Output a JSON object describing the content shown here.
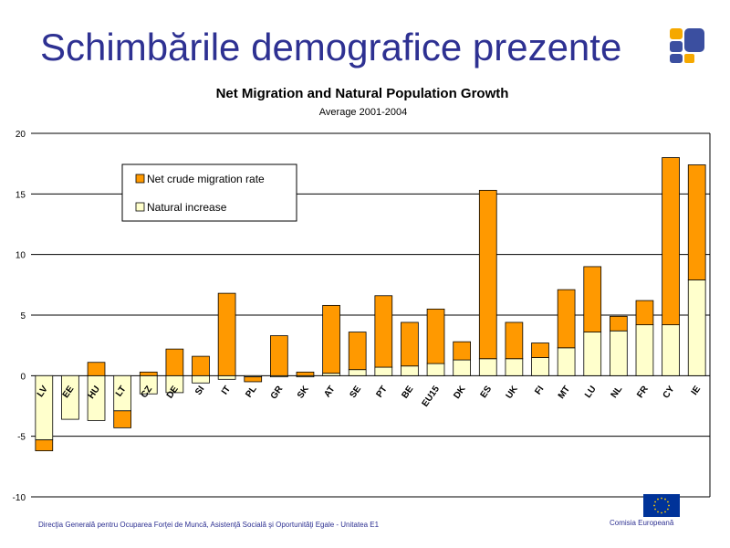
{
  "slide": {
    "title": "Schimbările demografice prezente",
    "footer_left": "Direcţia Generală pentru Ocuparea Forţei de Muncă, Asistenţă Socială şi Oportunităţi Egale  - Unitatea E1",
    "footer_right": "Comisia  Europeană"
  },
  "logo_icon": "four-squares-logo-icon",
  "flag_icon": "eu-flag-icon",
  "colors": {
    "title": "#2e3192",
    "migration": "#ff9900",
    "natural": "#ffffcc",
    "bar_stroke": "#000000",
    "logo_orange": "#f5a800",
    "logo_blue": "#3b4fa0",
    "eu_blue": "#003399",
    "eu_star": "#ffcc00"
  },
  "chart_data": {
    "type": "bar",
    "stacked": true,
    "title": "Net Migration and Natural Population Growth",
    "subtitle": "Average 2001-2004",
    "xlabel": "",
    "ylabel": "",
    "ylim": [
      -10,
      20
    ],
    "yticks": [
      -10,
      -5,
      0,
      5,
      10,
      15,
      20
    ],
    "ytick_labels": [
      "-10",
      "-5",
      "0",
      "5",
      "10",
      "15",
      "20"
    ],
    "grid": true,
    "legend_position": "top-left",
    "categories": [
      "LV",
      "EE",
      "HU",
      "LT",
      "CZ",
      "DE",
      "SI",
      "IT",
      "PL",
      "GR",
      "SK",
      "AT",
      "SE",
      "PT",
      "BE",
      "EU15",
      "DK",
      "ES",
      "UK",
      "FI",
      "MT",
      "LU",
      "NL",
      "FR",
      "CY",
      "IE"
    ],
    "series": [
      {
        "name": "Natural increase",
        "color": "#ffffcc",
        "values": [
          -5.3,
          -3.6,
          -3.7,
          -2.9,
          -1.5,
          -1.4,
          -0.6,
          -0.3,
          -0.1,
          -0.1,
          -0.1,
          0.2,
          0.5,
          0.7,
          0.8,
          1.0,
          1.3,
          1.4,
          1.4,
          1.5,
          2.3,
          3.6,
          3.7,
          4.2,
          4.2,
          7.9
        ]
      },
      {
        "name": "Net crude migration rate",
        "color": "#ff9900",
        "values": [
          -0.9,
          0.0,
          1.1,
          -1.4,
          0.3,
          2.2,
          1.6,
          6.8,
          -0.4,
          3.3,
          0.3,
          5.6,
          3.1,
          5.9,
          3.6,
          4.5,
          1.5,
          13.9,
          3.0,
          1.2,
          4.8,
          5.4,
          1.2,
          2.0,
          13.8,
          9.5
        ]
      }
    ]
  }
}
